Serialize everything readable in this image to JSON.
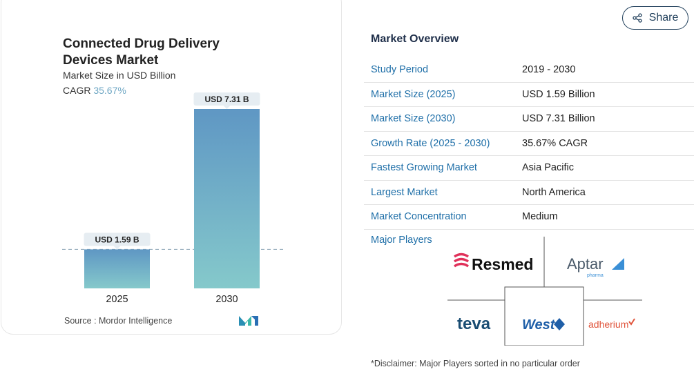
{
  "card": {
    "title": "Connected Drug Delivery Devices Market",
    "subtitle": "Market Size in USD Billion",
    "cagr_label": "CAGR",
    "cagr_value": "35.67%",
    "source": "Source :  Mordor Intelligence"
  },
  "chart_data": {
    "type": "bar",
    "categories": [
      "2025",
      "2030"
    ],
    "values": [
      1.59,
      7.31
    ],
    "data_labels": [
      "USD 1.59 B",
      "USD 7.31 B"
    ],
    "colors": [
      "#5f97c4",
      "#85c9cb"
    ],
    "ylim": [
      0,
      7.31
    ]
  },
  "share": {
    "label": "Share"
  },
  "overview": {
    "title": "Market Overview",
    "rows": [
      {
        "key": "Study Period",
        "value": "2019 - 2030"
      },
      {
        "key": "Market Size (2025)",
        "value": "USD 1.59 Billion"
      },
      {
        "key": "Market Size (2030)",
        "value": "USD 7.31 Billion"
      },
      {
        "key": "Growth Rate (2025 - 2030)",
        "value": "35.67% CAGR"
      },
      {
        "key": "Fastest Growing Market",
        "value": "Asia Pacific"
      },
      {
        "key": "Largest Market",
        "value": "North America"
      },
      {
        "key": "Market Concentration",
        "value": "Medium"
      }
    ],
    "major_players_label": "Major Players",
    "players": [
      "Resmed",
      "Aptar",
      "pharma",
      "teva",
      "West",
      "adherium"
    ],
    "disclaimer": "*Disclaimer: Major Players sorted in no particular order"
  }
}
